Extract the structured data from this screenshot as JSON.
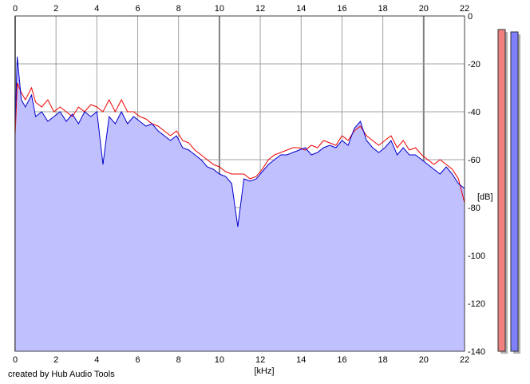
{
  "chart_data": {
    "type": "area",
    "xlabel": "[kHz]",
    "ylabel": "[dB]",
    "xlim": [
      0,
      22
    ],
    "ylim": [
      -140,
      0
    ],
    "x_ticks": [
      0,
      2,
      4,
      6,
      8,
      10,
      12,
      14,
      16,
      18,
      20,
      22
    ],
    "y_ticks": [
      0,
      -20,
      -40,
      -60,
      -80,
      -100,
      -120,
      -140
    ],
    "grid": true,
    "colors": {
      "red_channel": "#ee0000",
      "blue_channel": "#0000cc",
      "fill": "#c0c0ff",
      "red_meter": "#f08080",
      "blue_meter": "#8080ff"
    },
    "series": [
      {
        "color": "#ee0000",
        "x": [
          0,
          0.1,
          0.3,
          0.5,
          0.8,
          1,
          1.3,
          1.6,
          1.9,
          2.2,
          2.5,
          2.8,
          3.1,
          3.4,
          3.7,
          4,
          4.3,
          4.6,
          4.9,
          5.2,
          5.5,
          5.8,
          6.1,
          6.4,
          6.7,
          7,
          7.3,
          7.6,
          7.9,
          8.2,
          8.5,
          8.8,
          9.1,
          9.4,
          9.7,
          10,
          10.3,
          10.6,
          10.9,
          11.2,
          11.5,
          11.8,
          12.1,
          12.4,
          12.7,
          13,
          13.3,
          13.6,
          13.9,
          14.2,
          14.5,
          14.8,
          15.1,
          15.4,
          15.7,
          16,
          16.3,
          16.6,
          16.9,
          17.2,
          17.5,
          17.8,
          18.1,
          18.4,
          18.7,
          19,
          19.3,
          19.6,
          19.9,
          20.2,
          20.5,
          20.8,
          21.1,
          21.4,
          21.7,
          22
        ],
        "values": [
          -50,
          -28,
          -32,
          -35,
          -30,
          -36,
          -38,
          -35,
          -40,
          -38,
          -40,
          -42,
          -38,
          -40,
          -37,
          -38,
          -40,
          -35,
          -40,
          -35,
          -40,
          -40,
          -42,
          -43,
          -45,
          -46,
          -48,
          -50,
          -48,
          -52,
          -53,
          -56,
          -58,
          -60,
          -62,
          -63,
          -65,
          -66,
          -66,
          -66,
          -68,
          -67,
          -64,
          -60,
          -58,
          -57,
          -56,
          -55,
          -55,
          -56,
          -54,
          -55,
          -52,
          -53,
          -54,
          -50,
          -52,
          -48,
          -46,
          -50,
          -52,
          -54,
          -52,
          -50,
          -55,
          -52,
          -56,
          -55,
          -58,
          -60,
          -62,
          -60,
          -62,
          -64,
          -68,
          -78
        ]
      },
      {
        "color": "#0000cc",
        "x": [
          0,
          0.1,
          0.3,
          0.5,
          0.8,
          1,
          1.3,
          1.6,
          1.9,
          2.2,
          2.5,
          2.8,
          3.1,
          3.4,
          3.7,
          4,
          4.3,
          4.6,
          4.9,
          5.2,
          5.5,
          5.8,
          6.1,
          6.4,
          6.7,
          7,
          7.3,
          7.6,
          7.9,
          8.2,
          8.5,
          8.8,
          9.1,
          9.4,
          9.7,
          10,
          10.3,
          10.6,
          10.9,
          11.2,
          11.5,
          11.8,
          12.1,
          12.4,
          12.7,
          13,
          13.3,
          13.6,
          13.9,
          14.2,
          14.5,
          14.8,
          15.1,
          15.4,
          15.7,
          16,
          16.3,
          16.6,
          16.9,
          17.2,
          17.5,
          17.8,
          18.1,
          18.4,
          18.7,
          19,
          19.3,
          19.6,
          19.9,
          20.2,
          20.5,
          20.8,
          21.1,
          21.4,
          21.7,
          22
        ],
        "values": [
          -45,
          -17,
          -35,
          -38,
          -33,
          -42,
          -40,
          -44,
          -42,
          -40,
          -44,
          -41,
          -45,
          -40,
          -42,
          -40,
          -62,
          -42,
          -45,
          -40,
          -45,
          -42,
          -44,
          -46,
          -45,
          -48,
          -50,
          -52,
          -50,
          -55,
          -56,
          -58,
          -60,
          -63,
          -64,
          -66,
          -67,
          -70,
          -88,
          -68,
          -69,
          -68,
          -65,
          -62,
          -60,
          -58,
          -58,
          -57,
          -56,
          -55,
          -58,
          -57,
          -55,
          -54,
          -55,
          -52,
          -54,
          -47,
          -44,
          -52,
          -55,
          -57,
          -55,
          -52,
          -58,
          -55,
          -58,
          -58,
          -60,
          -62,
          -64,
          -66,
          -63,
          -66,
          -70,
          -72
        ]
      }
    ],
    "meters": [
      {
        "color": "#f08080",
        "level_db": -3
      },
      {
        "color": "#8080ff",
        "level_db": -4
      }
    ]
  },
  "footer": {
    "credit": "created by Hub Audio Tools"
  }
}
